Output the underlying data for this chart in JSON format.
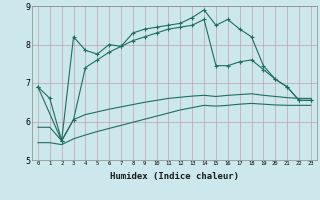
{
  "xlabel": "Humidex (Indice chaleur)",
  "bg_color": "#cce8ec",
  "grid_color": "#c0a0b0",
  "line_color": "#1e6e5e",
  "ylim": [
    5,
    9
  ],
  "xlim": [
    -0.5,
    23.5
  ],
  "yticks": [
    5,
    6,
    7,
    8,
    9
  ],
  "xticks": [
    0,
    1,
    2,
    3,
    4,
    5,
    6,
    7,
    8,
    9,
    10,
    11,
    12,
    13,
    14,
    15,
    16,
    17,
    18,
    19,
    20,
    21,
    22,
    23
  ],
  "line1_x": [
    0,
    1,
    2,
    3,
    4,
    5,
    6,
    7,
    8,
    9,
    10,
    11,
    12,
    13,
    14,
    15,
    16,
    17,
    18,
    19,
    20,
    21,
    22,
    23
  ],
  "line1_y": [
    6.9,
    6.6,
    5.5,
    8.2,
    7.85,
    7.75,
    8.0,
    7.95,
    8.3,
    8.4,
    8.45,
    8.5,
    8.55,
    8.7,
    8.9,
    8.5,
    8.65,
    8.4,
    8.2,
    7.45,
    7.1,
    6.9,
    6.55,
    6.55
  ],
  "line2_x": [
    0,
    2,
    3,
    4,
    5,
    6,
    7,
    8,
    9,
    10,
    11,
    12,
    13,
    14,
    15,
    16,
    17,
    18,
    19,
    20,
    21,
    22,
    23
  ],
  "line2_y": [
    6.9,
    5.5,
    6.05,
    7.4,
    7.6,
    7.8,
    7.95,
    8.1,
    8.2,
    8.3,
    8.4,
    8.45,
    8.5,
    8.65,
    7.45,
    7.45,
    7.55,
    7.6,
    7.35,
    7.1,
    6.9,
    6.55,
    6.55
  ],
  "line3_x": [
    0,
    1,
    2,
    3,
    4,
    5,
    6,
    7,
    8,
    9,
    10,
    11,
    12,
    13,
    14,
    15,
    16,
    17,
    18,
    19,
    20,
    21,
    22,
    23
  ],
  "line3_y": [
    5.85,
    5.85,
    5.5,
    6.05,
    6.18,
    6.25,
    6.32,
    6.38,
    6.44,
    6.5,
    6.55,
    6.6,
    6.63,
    6.66,
    6.68,
    6.65,
    6.68,
    6.7,
    6.72,
    6.68,
    6.65,
    6.62,
    6.6,
    6.6
  ],
  "line4_x": [
    0,
    1,
    2,
    3,
    4,
    5,
    6,
    7,
    8,
    9,
    10,
    11,
    12,
    13,
    14,
    15,
    16,
    17,
    18,
    19,
    20,
    21,
    22,
    23
  ],
  "line4_y": [
    5.45,
    5.45,
    5.4,
    5.55,
    5.65,
    5.74,
    5.82,
    5.9,
    5.98,
    6.06,
    6.14,
    6.22,
    6.3,
    6.36,
    6.42,
    6.4,
    6.42,
    6.45,
    6.47,
    6.45,
    6.43,
    6.42,
    6.42,
    6.42
  ]
}
